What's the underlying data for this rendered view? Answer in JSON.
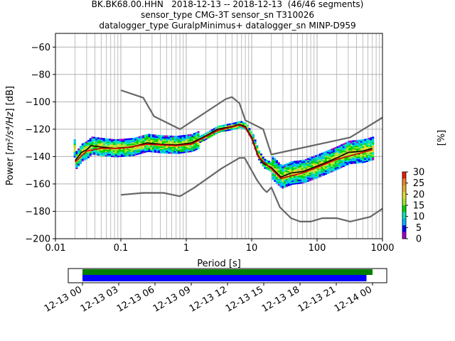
{
  "title_lines": [
    "BK.BK68.00.HHN   2018-12-13 -- 2018-12-13  (46/46 segments)",
    "sensor_type CMG-3T sensor_sn T310026",
    "datalogger_type GuralpMinimus+ datalogger_sn MINP-D959"
  ],
  "chart_data": {
    "type": "heatmap",
    "xlabel": "Period [s]",
    "ylabel_prefix": "Power [",
    "ylabel_units": "m²/s⁴/Hz",
    "ylabel_suffix": "] [dB]",
    "x_scale": "log",
    "xlim": [
      0.01,
      1000
    ],
    "ylim": [
      -200,
      -50
    ],
    "x_ticks": [
      0.01,
      0.1,
      1,
      10,
      100,
      1000
    ],
    "x_tick_labels": [
      "0.01",
      "0.1",
      "1",
      "10",
      "100",
      "1000"
    ],
    "y_ticks": [
      -200,
      -180,
      -160,
      -140,
      -120,
      -100,
      -80,
      -60
    ],
    "y_tick_labels": [
      "−200",
      "−180",
      "−160",
      "−140",
      "−120",
      "−100",
      "−80",
      "−60"
    ],
    "grid": true,
    "series": [
      {
        "line_color": "#676767",
        "points": [
          [
            0.1,
            -91.5
          ],
          [
            0.22,
            -97
          ],
          [
            0.32,
            -110.5
          ],
          [
            0.8,
            -120
          ],
          [
            4,
            -98
          ],
          [
            5,
            -96.5
          ],
          [
            6.5,
            -101
          ],
          [
            8,
            -113.5
          ],
          [
            15,
            -120
          ],
          [
            20,
            -138.5
          ],
          [
            320,
            -126
          ],
          [
            1000,
            -111.5
          ]
        ]
      },
      {
        "line_color": "#676767",
        "points": [
          [
            0.1,
            -168
          ],
          [
            0.22,
            -166.5
          ],
          [
            0.45,
            -166.5
          ],
          [
            0.8,
            -169
          ],
          [
            1.3,
            -163
          ],
          [
            3.5,
            -148.5
          ],
          [
            6.5,
            -141
          ],
          [
            7.8,
            -141
          ],
          [
            12,
            -157
          ],
          [
            15,
            -163.5
          ],
          [
            17,
            -166
          ],
          [
            20,
            -162.5
          ],
          [
            27,
            -177
          ],
          [
            40,
            -185
          ],
          [
            55,
            -187.5
          ],
          [
            80,
            -187.5
          ],
          [
            120,
            -185
          ],
          [
            200,
            -185
          ],
          [
            320,
            -187.5
          ],
          [
            650,
            -184
          ],
          [
            1000,
            -178
          ]
        ]
      },
      {
        "line_color": "#000000",
        "points": [
          [
            0.02,
            -143
          ],
          [
            0.025,
            -137
          ],
          [
            0.03,
            -135
          ],
          [
            0.035,
            -132
          ],
          [
            0.05,
            -133
          ],
          [
            0.08,
            -134
          ],
          [
            0.15,
            -133
          ],
          [
            0.25,
            -130
          ],
          [
            0.4,
            -131
          ],
          [
            0.7,
            -131.5
          ],
          [
            1.2,
            -130
          ],
          [
            1.8,
            -126
          ],
          [
            3,
            -120
          ],
          [
            5,
            -118
          ],
          [
            6.5,
            -116.5
          ],
          [
            8,
            -118
          ],
          [
            10,
            -126
          ],
          [
            12.5,
            -139
          ],
          [
            15,
            -145
          ],
          [
            20,
            -148
          ],
          [
            28,
            -155
          ],
          [
            40,
            -152
          ],
          [
            60,
            -151
          ],
          [
            100,
            -147
          ],
          [
            200,
            -141
          ],
          [
            300,
            -137
          ],
          [
            500,
            -136
          ],
          [
            700,
            -134
          ]
        ]
      },
      {
        "line_color": "#cc0000",
        "points": [
          [
            0.02,
            -144
          ],
          [
            0.03,
            -136
          ],
          [
            0.05,
            -134
          ],
          [
            0.1,
            -134
          ],
          [
            0.25,
            -131
          ],
          [
            0.7,
            -132
          ],
          [
            1.2,
            -131
          ],
          [
            3,
            -121
          ],
          [
            6.5,
            -117
          ],
          [
            8,
            -119
          ],
          [
            10,
            -127
          ],
          [
            12.5,
            -140
          ],
          [
            20,
            -149
          ],
          [
            28,
            -156
          ],
          [
            60,
            -152
          ],
          [
            100,
            -148
          ],
          [
            200,
            -142
          ],
          [
            500,
            -137
          ],
          [
            700,
            -135
          ]
        ]
      }
    ],
    "colorbar": {
      "label": "[%]",
      "ticks": [
        "0",
        "5",
        "10",
        "15",
        "20",
        "25",
        "30"
      ],
      "range": [
        0,
        30
      ],
      "colors": [
        "#ffffff",
        "#a000c8",
        "#0000ff",
        "#00b4ff",
        "#00e8b0",
        "#00d200",
        "#a0e632",
        "#e6dc32",
        "#e6af2d",
        "#f08228",
        "#e61e00"
      ]
    }
  },
  "timeline": {
    "x_tick_labels": [
      "12-13 00",
      "12-13 03",
      "12-13 06",
      "12-13 09",
      "12-13 12",
      "12-13 15",
      "12-13 18",
      "12-13 21",
      "12-14 00"
    ],
    "data_bar_color": "#0000ff",
    "gap_bar_color": "#008000",
    "data_coverage_hours": [
      0,
      23.5
    ],
    "gap_coverage_hours": [
      0,
      24.0
    ]
  }
}
